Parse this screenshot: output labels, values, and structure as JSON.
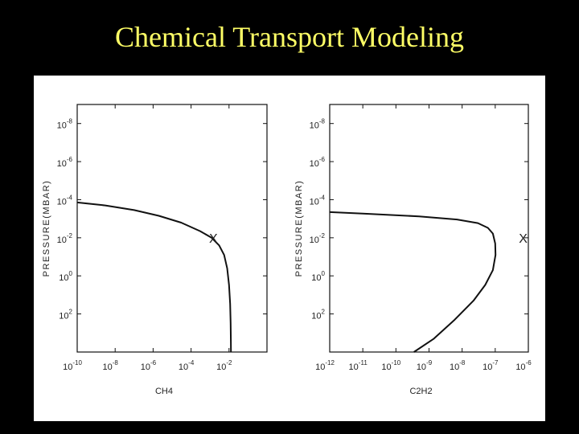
{
  "slide": {
    "title": "Chemical Transport Modeling"
  },
  "colors": {
    "background": "#000000",
    "title": "#ffff66",
    "panel": "#ffffff",
    "ink": "#111111"
  },
  "chart_data": [
    {
      "type": "line",
      "title": "",
      "xlabel": "CH4",
      "ylabel": "PRESSURE(MBAR)",
      "xscale": "log",
      "yscale": "log",
      "yinverted": true,
      "xlim": [
        1e-10,
        1
      ],
      "ylim": [
        10000.0,
        1e-09
      ],
      "xticks": [
        {
          "value": 1e-10,
          "base": "10",
          "exp": "-10"
        },
        {
          "value": 1e-08,
          "base": "10",
          "exp": "-8"
        },
        {
          "value": 1e-06,
          "base": "10",
          "exp": "-6"
        },
        {
          "value": 0.0001,
          "base": "10",
          "exp": "-4"
        },
        {
          "value": 0.01,
          "base": "10",
          "exp": "-2"
        }
      ],
      "yticks": [
        {
          "value": 1e-08,
          "base": "10",
          "exp": "-8"
        },
        {
          "value": 1e-06,
          "base": "10",
          "exp": "-6"
        },
        {
          "value": 0.0001,
          "base": "10",
          "exp": "-4"
        },
        {
          "value": 0.01,
          "base": "10",
          "exp": "-2"
        },
        {
          "value": 1,
          "base": "10",
          "exp": "0"
        },
        {
          "value": 100,
          "base": "10",
          "exp": "2"
        }
      ],
      "grid": false,
      "legend": "none",
      "series": [
        {
          "x": [
            1e-10,
            3e-09,
            1e-07,
            2e-06,
            3e-05,
            0.0003,
            0.0012,
            0.003,
            0.0055,
            0.008,
            0.01,
            0.0115,
            0.0122,
            0.0125,
            0.0126
          ],
          "y": [
            0.00014,
            0.0002,
            0.00035,
            0.0007,
            0.0016,
            0.0045,
            0.01,
            0.025,
            0.08,
            0.4,
            3,
            30,
            300,
            3000,
            10000
          ]
        }
      ],
      "annotations": [
        {
          "text": "X",
          "x": 0.0015,
          "y": 0.01
        }
      ]
    },
    {
      "type": "line",
      "title": "",
      "xlabel": "C2H2",
      "ylabel": "PRESSURE(MBAR)",
      "xscale": "log",
      "yscale": "log",
      "yinverted": true,
      "xlim": [
        1e-12,
        1e-06
      ],
      "ylim": [
        10000.0,
        1e-09
      ],
      "xticks": [
        {
          "value": 1e-12,
          "base": "10",
          "exp": "-12"
        },
        {
          "value": 1e-11,
          "base": "10",
          "exp": "-11"
        },
        {
          "value": 1e-10,
          "base": "10",
          "exp": "-10"
        },
        {
          "value": 1e-09,
          "base": "10",
          "exp": "-9"
        },
        {
          "value": 1e-08,
          "base": "10",
          "exp": "-8"
        },
        {
          "value": 1e-07,
          "base": "10",
          "exp": "-7"
        },
        {
          "value": 1e-06,
          "base": "10",
          "exp": "-6"
        }
      ],
      "yticks": [
        {
          "value": 1e-08,
          "base": "10",
          "exp": "-8"
        },
        {
          "value": 1e-06,
          "base": "10",
          "exp": "-6"
        },
        {
          "value": 0.0001,
          "base": "10",
          "exp": "-4"
        },
        {
          "value": 0.01,
          "base": "10",
          "exp": "-2"
        },
        {
          "value": 1,
          "base": "10",
          "exp": "0"
        },
        {
          "value": 100,
          "base": "10",
          "exp": "2"
        }
      ],
      "grid": false,
      "legend": "none",
      "series": [
        {
          "x": [
            1e-12,
            1e-11,
            5e-10,
            7e-09,
            3e-08,
            6e-08,
            8.5e-08,
            1e-07,
            1.02e-07,
            8.5e-08,
            5e-08,
            2.2e-08,
            6e-09,
            1.4e-09,
            3.5e-10
          ],
          "y": [
            0.00045,
            0.00054,
            0.00075,
            0.0011,
            0.0017,
            0.003,
            0.006,
            0.02,
            0.08,
            0.5,
            3,
            20,
            200,
            2000,
            10000
          ]
        }
      ],
      "annotations": [
        {
          "text": "X",
          "x": 7e-07,
          "y": 0.01
        }
      ]
    }
  ]
}
